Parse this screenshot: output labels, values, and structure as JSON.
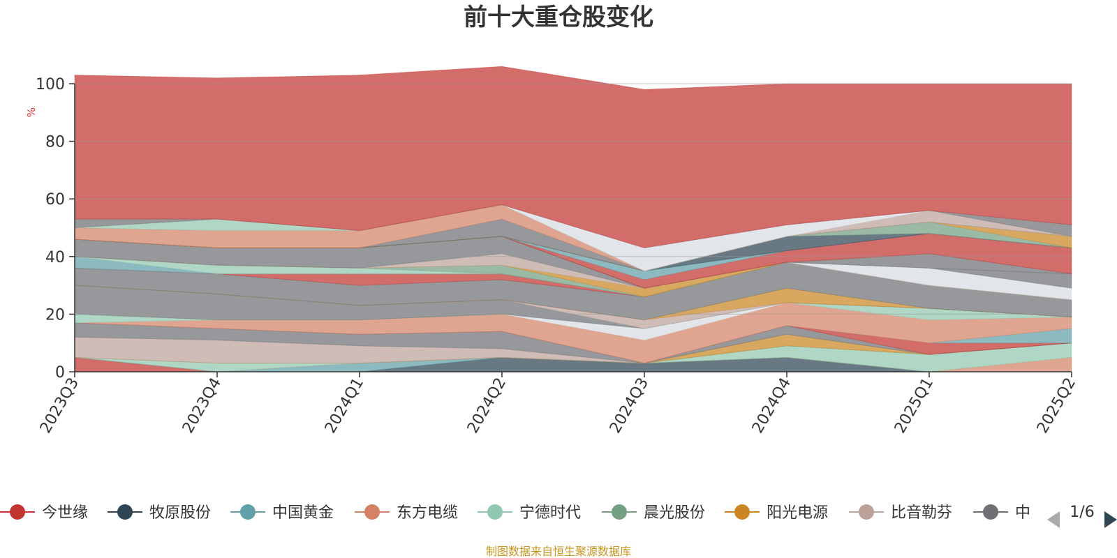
{
  "chart_data": {
    "type": "area",
    "stacked": true,
    "title": "前十大重仓股变化",
    "ylabel": "%",
    "ylim": [
      0,
      100
    ],
    "y_ticks": [
      "0",
      "20",
      "40",
      "60",
      "80",
      "100"
    ],
    "categories": [
      "2023Q3",
      "2023Q4",
      "2024Q1",
      "2024Q2",
      "2024Q3",
      "2024Q4",
      "2025Q1",
      "2025Q2"
    ],
    "grid": true,
    "legend_position": "bottom",
    "series": [
      {
        "name": "今世缘",
        "color": "#c23531",
        "values": [
          5,
          0,
          0,
          0,
          0,
          0,
          0,
          0
        ]
      },
      {
        "name": "牧原股份",
        "color": "#2f4554",
        "values": [
          0,
          0,
          0,
          5,
          3,
          5,
          0,
          0
        ]
      },
      {
        "name": "中国黄金",
        "color": "#61a0a8",
        "values": [
          0,
          0,
          3,
          0,
          0,
          0,
          0,
          0
        ]
      },
      {
        "name": "东方电缆",
        "color": "#d48265",
        "values": [
          0,
          0,
          0,
          0,
          0,
          0,
          0,
          5
        ]
      },
      {
        "name": "宁德时代",
        "color": "#91c7ae",
        "values": [
          0,
          3,
          0,
          0,
          0,
          4,
          6,
          5
        ]
      },
      {
        "name": "晨光股份",
        "color": "#749f83",
        "values": [
          0,
          0,
          0,
          0,
          0,
          0,
          0,
          0
        ]
      },
      {
        "name": "阳光电源",
        "color": "#ca8622",
        "values": [
          0,
          0,
          0,
          0,
          0,
          4,
          0,
          0
        ]
      },
      {
        "name": "比音勒芬",
        "color": "#bda29a",
        "values": [
          7,
          8,
          6,
          3,
          0,
          0,
          0,
          0
        ]
      }
    ],
    "series_unlabeled": [
      {
        "color": "#6e7074",
        "values": [
          5,
          4,
          4,
          6,
          0,
          3,
          0,
          0
        ]
      },
      {
        "color": "#c23531",
        "values": [
          0,
          0,
          0,
          0,
          0,
          0,
          4,
          0
        ]
      },
      {
        "color": "#61a0a8",
        "values": [
          0,
          0,
          0,
          0,
          0,
          0,
          0,
          5
        ]
      },
      {
        "color": "#d48265",
        "values": [
          0,
          3,
          5,
          6,
          8,
          8,
          8,
          4
        ]
      },
      {
        "color": "#d7dde3",
        "values": [
          0,
          0,
          0,
          0,
          4,
          0,
          0,
          0
        ]
      },
      {
        "color": "#91c7ae",
        "values": [
          3,
          0,
          0,
          0,
          0,
          0,
          4,
          0
        ]
      },
      {
        "color": "#6e7074",
        "values": [
          10,
          9,
          5,
          5,
          0,
          0,
          0,
          0
        ]
      },
      {
        "color": "#bda29a",
        "values": [
          0,
          0,
          0,
          0,
          3,
          0,
          0,
          0
        ]
      },
      {
        "color": "#ca8622",
        "values": [
          0,
          0,
          0,
          0,
          0,
          5,
          0,
          0
        ]
      },
      {
        "color": "#6e7074",
        "values": [
          6,
          7,
          7,
          7,
          8,
          9,
          8,
          6
        ]
      },
      {
        "color": "#c23531",
        "values": [
          0,
          0,
          4,
          2,
          0,
          0,
          0,
          0
        ]
      },
      {
        "color": "#61a0a8",
        "values": [
          4,
          0,
          0,
          0,
          0,
          0,
          0,
          0
        ]
      },
      {
        "color": "#91c7ae",
        "values": [
          0,
          3,
          2,
          0,
          0,
          0,
          0,
          0
        ]
      },
      {
        "color": "#749f83",
        "values": [
          0,
          0,
          0,
          3,
          0,
          0,
          0,
          0
        ]
      },
      {
        "color": "#ca8622",
        "values": [
          0,
          0,
          0,
          0,
          3,
          0,
          0,
          0
        ]
      },
      {
        "color": "#bda29a",
        "values": [
          0,
          0,
          0,
          4,
          0,
          0,
          0,
          0
        ]
      },
      {
        "color": "#d7dde3",
        "values": [
          0,
          0,
          0,
          0,
          0,
          0,
          6,
          4
        ]
      },
      {
        "color": "#6e7074",
        "values": [
          6,
          6,
          7,
          6,
          0,
          0,
          0,
          5
        ]
      },
      {
        "color": "#6e7074",
        "values": [
          0,
          0,
          0,
          0,
          0,
          0,
          5,
          0
        ]
      },
      {
        "color": "#c23531",
        "values": [
          0,
          0,
          0,
          0,
          3,
          4,
          7,
          9
        ]
      },
      {
        "color": "#61a0a8",
        "values": [
          0,
          0,
          0,
          0,
          3,
          0,
          0,
          0
        ]
      },
      {
        "color": "#2f4554",
        "values": [
          0,
          0,
          0,
          0,
          0,
          5,
          0,
          0
        ]
      },
      {
        "color": "#749f83",
        "values": [
          0,
          0,
          0,
          0,
          0,
          0,
          4,
          0
        ]
      },
      {
        "color": "#ca8622",
        "values": [
          0,
          0,
          0,
          0,
          0,
          0,
          0,
          4
        ]
      },
      {
        "color": "#6e7074",
        "values": [
          0,
          0,
          0,
          6,
          0,
          0,
          0,
          0
        ]
      },
      {
        "color": "#d48265",
        "values": [
          4,
          6,
          6,
          5,
          0,
          0,
          0,
          0
        ]
      },
      {
        "color": "#91c7ae",
        "values": [
          0,
          4,
          0,
          0,
          0,
          0,
          0,
          0
        ]
      },
      {
        "color": "#bda29a",
        "values": [
          0,
          0,
          0,
          0,
          0,
          0,
          4,
          0
        ]
      },
      {
        "color": "#d7dde3",
        "values": [
          0,
          0,
          0,
          0,
          8,
          4,
          0,
          0
        ]
      },
      {
        "color": "#6e7074",
        "values": [
          3,
          0,
          0,
          0,
          0,
          0,
          0,
          4
        ]
      },
      {
        "color": "#c23531",
        "values": [
          50,
          49,
          54,
          48,
          55,
          49,
          44,
          49
        ]
      }
    ]
  },
  "legend": {
    "page": "1/6",
    "items": [
      {
        "name": "今世缘",
        "color": "#c23531"
      },
      {
        "name": "牧原股份",
        "color": "#2f4554"
      },
      {
        "name": "中国黄金",
        "color": "#61a0a8"
      },
      {
        "name": "东方电缆",
        "color": "#d48265"
      },
      {
        "name": "宁德时代",
        "color": "#91c7ae"
      },
      {
        "name": "晨光股份",
        "color": "#749f83"
      },
      {
        "name": "阳光电源",
        "color": "#ca8622"
      },
      {
        "name": "比音勒芬",
        "color": "#bda29a"
      },
      {
        "name": "中",
        "color": "#6e7074"
      }
    ]
  },
  "source": "制图数据来自恒生聚源数据库",
  "colors": {
    "source_text": "#c8961e",
    "ylabel_text": "#e0302a",
    "axis": "#333333",
    "grid": "#999999",
    "pager_disabled": "#aaaaaa",
    "pager_active": "#2f4554"
  }
}
